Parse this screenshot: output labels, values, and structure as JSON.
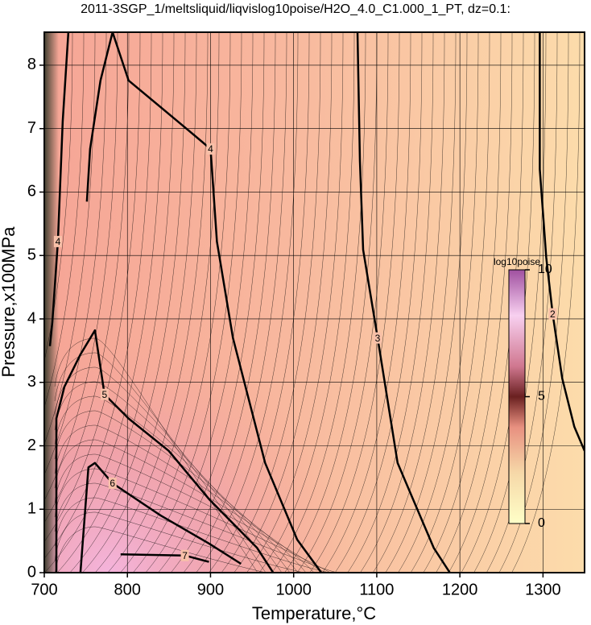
{
  "chart_data": {
    "type": "contour",
    "title": "2011-3SGP_1/meltsliquid/liqvislog10poise/H2O_4.0_C1.000_1_PT, dz=0.1:",
    "x_label": "Temperature,°C",
    "y_label": "Pressure,x100MPa",
    "xlim": [
      700,
      1350
    ],
    "ylim": [
      0,
      8.52
    ],
    "xticks": [
      700,
      800,
      900,
      1000,
      1100,
      1200,
      1300
    ],
    "yticks": [
      0,
      1,
      2,
      3,
      4,
      5,
      6,
      7,
      8
    ],
    "grid": true,
    "colorbar": {
      "label": "log10poise",
      "lim": [
        0,
        10
      ],
      "ticks": [
        0,
        5,
        10
      ]
    },
    "contours": [
      {
        "level": 4,
        "x": [
          751.2,
          755.1,
          767.6,
          782.1,
          801.4,
          871,
          900,
          907.7,
          927,
          965.7,
          1004.3,
          1033.3
        ],
        "y": [
          5.85,
          6.68,
          7.76,
          8.52,
          7.76,
          7.0,
          6.68,
          5.22,
          3.7,
          1.73,
          0.52,
          0
        ]
      },
      {
        "level": 4,
        "x": [
          729,
          722.2,
          716.4,
          709.7,
          706.8
        ],
        "y": [
          8.52,
          7.12,
          5.22,
          3.95,
          3.57
        ]
      },
      {
        "level": 3,
        "x": [
          1076.8,
          1079.7,
          1083.6,
          1101,
          1125.1,
          1168.6,
          1187.9
        ],
        "y": [
          8.52,
          6.49,
          5.09,
          3.7,
          1.73,
          0.39,
          0
        ]
      },
      {
        "level": 2,
        "x": [
          1296.1,
          1296.1,
          1303.9,
          1311.6,
          1323.2,
          1337.7,
          1350
        ],
        "y": [
          8.52,
          6.36,
          4.97,
          4.08,
          3.06,
          2.3,
          1.92
        ]
      },
      {
        "level": 5,
        "x": [
          714.5,
          714.5,
          724.2,
          743.5,
          760.9,
          772.5,
          801.4,
          849.8,
          898.1,
          956,
          975.4
        ],
        "y": [
          0,
          2.43,
          2.93,
          3.44,
          3.82,
          2.81,
          2.43,
          1.92,
          1.16,
          0.39,
          0
        ]
      },
      {
        "level": 6,
        "x": [
          743.5,
          753.1,
          760.9,
          782.1,
          840.1,
          898.1,
          936.7
        ],
        "y": [
          0,
          1.66,
          1.73,
          1.41,
          0.9,
          0.46,
          0.14
        ]
      },
      {
        "level": 7,
        "x": [
          791.8,
          869.1,
          898.1
        ],
        "y": [
          0.29,
          0.27,
          0.17
        ]
      }
    ]
  }
}
